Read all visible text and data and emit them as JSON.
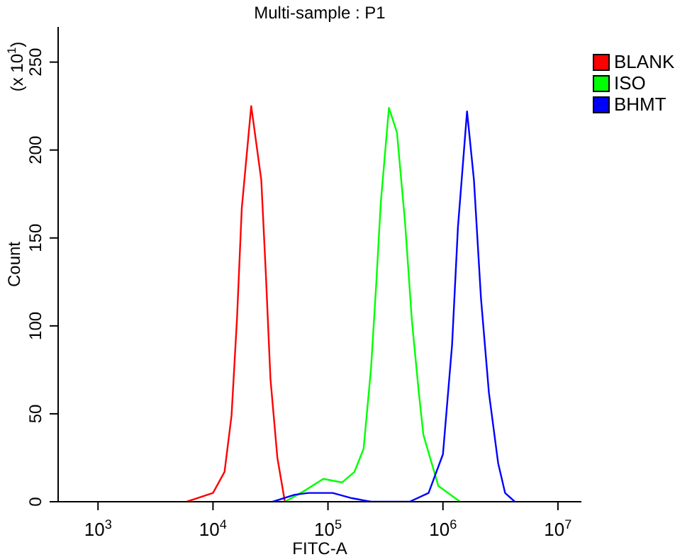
{
  "chart_data": {
    "type": "line",
    "title": "Multi-sample : P1",
    "xlabel": "FITC-A",
    "ylabel": "Count",
    "annotations": [
      "(x 10$^{1}$)"
    ],
    "log": "x",
    "xlim": [
      450,
      16000000
    ],
    "xticks": [
      {
        "value": 1000,
        "label": "10$^{3}$"
      },
      {
        "value": 10000,
        "label": "10$^{4}$"
      },
      {
        "value": 100000,
        "label": "10$^{5}$"
      },
      {
        "value": 1000000,
        "label": "10$^{6}$"
      },
      {
        "value": 10000000,
        "label": "10$^{7}$"
      }
    ],
    "ylim": [
      0,
      270
    ],
    "yticks": [
      0,
      50,
      100,
      150,
      200,
      250
    ],
    "grid": false,
    "legend": "top right",
    "marker": "none",
    "line_style": "solid",
    "series": [
      {
        "name": "BLANK",
        "color": "#ff0000",
        "x": [
          5900,
          10000,
          12600,
          14500,
          16200,
          17800,
          21500,
          26300,
          28800,
          31600,
          36300,
          42200
        ],
        "values": [
          0,
          5,
          17,
          49,
          105,
          167,
          225,
          183,
          130,
          70,
          25,
          0
        ]
      },
      {
        "name": "ISO",
        "color": "#00ff00",
        "x": [
          42200,
          61700,
          91200,
          133000,
          170000,
          204000,
          237000,
          263000,
          288000,
          339000,
          398000,
          468000,
          537000,
          617000,
          676000,
          912000,
          1410000
        ],
        "values": [
          0,
          6,
          13,
          11,
          17,
          30,
          76,
          124,
          170,
          224,
          210,
          159,
          103,
          62,
          38,
          9,
          0
        ]
      },
      {
        "name": "BHMT",
        "color": "#0000ff",
        "x": [
          33100,
          51300,
          67600,
          110000,
          162000,
          237000,
          513000,
          750000,
          1000000,
          1200000,
          1350000,
          1620000,
          1860000,
          2140000,
          2510000,
          3020000,
          3470000,
          4220000
        ],
        "values": [
          0,
          4,
          5,
          5,
          2,
          0,
          0,
          5,
          27,
          89,
          156,
          222,
          183,
          116,
          62,
          22,
          5,
          0
        ]
      }
    ]
  }
}
